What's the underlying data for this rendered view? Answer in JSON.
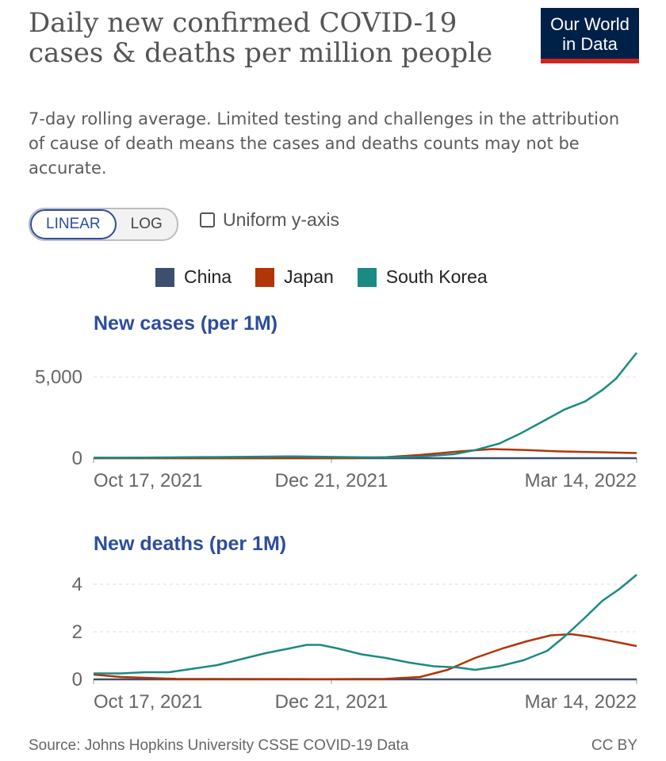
{
  "header": {
    "title": "Daily new confirmed COVID-19 cases & deaths per million people",
    "subtitle": "7-day rolling average. Limited testing and challenges in the attribution of cause of death means the cases and deaths counts may not be accurate.",
    "logo_line1": "Our World",
    "logo_line2": "in Data",
    "logo_bg": "#002147",
    "logo_accent": "#ce261e"
  },
  "controls": {
    "linear_label": "LINEAR",
    "log_label": "LOG",
    "selected_scale": "LINEAR",
    "uniform_label": "Uniform y-axis",
    "uniform_checked": false
  },
  "legend": [
    {
      "name": "China",
      "color": "#3d4f6e"
    },
    {
      "name": "Japan",
      "color": "#b13507"
    },
    {
      "name": "South Korea",
      "color": "#1b8a82"
    }
  ],
  "footer": {
    "source": "Source: Johns Hopkins University CSSE COVID-19 Data",
    "license": "CC BY"
  },
  "chart_data": [
    {
      "type": "line",
      "title": "New cases (per 1M)",
      "x_ticks": [
        "Oct 17, 2021",
        "Dec 21, 2021",
        "Mar 14, 2022"
      ],
      "x_range": [
        "2021-10-17",
        "2022-03-24"
      ],
      "y_ticks": [
        0,
        5000
      ],
      "y_tick_labels": [
        "0",
        "5,000"
      ],
      "ylim": [
        0,
        6500
      ],
      "grid": true,
      "series": [
        {
          "name": "China",
          "color": "#3d4f6e",
          "points": [
            [
              "2021-10-17",
              0
            ],
            [
              "2022-03-24",
              1
            ]
          ]
        },
        {
          "name": "Japan",
          "color": "#b13507",
          "points": [
            [
              "2021-10-17",
              5
            ],
            [
              "2021-11-20",
              2
            ],
            [
              "2021-12-21",
              2
            ],
            [
              "2022-01-01",
              5
            ],
            [
              "2022-01-10",
              60
            ],
            [
              "2022-01-20",
              200
            ],
            [
              "2022-02-01",
              430
            ],
            [
              "2022-02-10",
              560
            ],
            [
              "2022-02-20",
              500
            ],
            [
              "2022-03-01",
              420
            ],
            [
              "2022-03-10",
              380
            ],
            [
              "2022-03-24",
              320
            ]
          ]
        },
        {
          "name": "South Korea",
          "color": "#1b8a82",
          "points": [
            [
              "2021-10-17",
              30
            ],
            [
              "2021-11-01",
              40
            ],
            [
              "2021-11-20",
              70
            ],
            [
              "2021-12-01",
              90
            ],
            [
              "2021-12-13",
              110
            ],
            [
              "2021-12-21",
              95
            ],
            [
              "2022-01-01",
              60
            ],
            [
              "2022-01-10",
              50
            ],
            [
              "2022-01-20",
              100
            ],
            [
              "2022-01-30",
              250
            ],
            [
              "2022-02-05",
              500
            ],
            [
              "2022-02-12",
              900
            ],
            [
              "2022-02-18",
              1500
            ],
            [
              "2022-02-25",
              2300
            ],
            [
              "2022-03-03",
              3000
            ],
            [
              "2022-03-09",
              3500
            ],
            [
              "2022-03-14",
              4200
            ],
            [
              "2022-03-18",
              4900
            ],
            [
              "2022-03-24",
              6500
            ]
          ]
        }
      ]
    },
    {
      "type": "line",
      "title": "New deaths (per 1M)",
      "x_ticks": [
        "Oct 17, 2021",
        "Dec 21, 2021",
        "Mar 14, 2022"
      ],
      "x_range": [
        "2021-10-17",
        "2022-03-24"
      ],
      "y_ticks": [
        0,
        2,
        4
      ],
      "y_tick_labels": [
        "0",
        "2",
        "4"
      ],
      "ylim": [
        0,
        4.4
      ],
      "grid": true,
      "series": [
        {
          "name": "China",
          "color": "#3d4f6e",
          "points": [
            [
              "2021-10-17",
              0
            ],
            [
              "2022-03-24",
              0
            ]
          ]
        },
        {
          "name": "Japan",
          "color": "#b13507",
          "points": [
            [
              "2021-10-17",
              0.2
            ],
            [
              "2021-10-25",
              0.1
            ],
            [
              "2021-11-10",
              0.02
            ],
            [
              "2021-12-21",
              0.01
            ],
            [
              "2022-01-10",
              0.02
            ],
            [
              "2022-01-20",
              0.1
            ],
            [
              "2022-01-28",
              0.4
            ],
            [
              "2022-02-05",
              0.9
            ],
            [
              "2022-02-13",
              1.3
            ],
            [
              "2022-02-20",
              1.6
            ],
            [
              "2022-02-27",
              1.85
            ],
            [
              "2022-03-05",
              1.9
            ],
            [
              "2022-03-10",
              1.8
            ],
            [
              "2022-03-17",
              1.6
            ],
            [
              "2022-03-24",
              1.4
            ]
          ]
        },
        {
          "name": "South Korea",
          "color": "#1b8a82",
          "points": [
            [
              "2021-10-17",
              0.25
            ],
            [
              "2021-10-25",
              0.25
            ],
            [
              "2021-11-01",
              0.3
            ],
            [
              "2021-11-08",
              0.3
            ],
            [
              "2021-11-15",
              0.45
            ],
            [
              "2021-11-22",
              0.6
            ],
            [
              "2021-11-29",
              0.85
            ],
            [
              "2021-12-06",
              1.1
            ],
            [
              "2021-12-13",
              1.3
            ],
            [
              "2021-12-18",
              1.45
            ],
            [
              "2021-12-22",
              1.45
            ],
            [
              "2021-12-27",
              1.3
            ],
            [
              "2022-01-03",
              1.05
            ],
            [
              "2022-01-10",
              0.9
            ],
            [
              "2022-01-17",
              0.7
            ],
            [
              "2022-01-24",
              0.55
            ],
            [
              "2022-01-31",
              0.5
            ],
            [
              "2022-02-05",
              0.4
            ],
            [
              "2022-02-12",
              0.55
            ],
            [
              "2022-02-19",
              0.8
            ],
            [
              "2022-02-26",
              1.2
            ],
            [
              "2022-03-03",
              1.8
            ],
            [
              "2022-03-09",
              2.6
            ],
            [
              "2022-03-14",
              3.3
            ],
            [
              "2022-03-19",
              3.8
            ],
            [
              "2022-03-24",
              4.4
            ]
          ]
        }
      ]
    }
  ]
}
